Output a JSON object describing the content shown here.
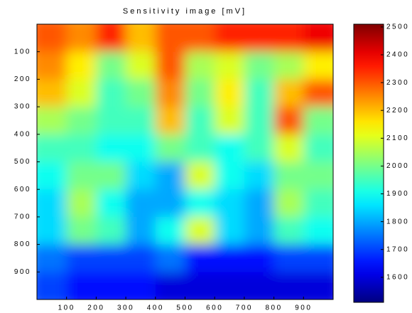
{
  "chart_data": {
    "type": "heatmap",
    "title": "Sensitivity image [mV]",
    "xlim": [
      0,
      1000
    ],
    "xticks": [
      100,
      200,
      300,
      400,
      500,
      600,
      700,
      800,
      900
    ],
    "ylim": [
      0,
      1000
    ],
    "yticks": [
      100,
      200,
      300,
      400,
      500,
      600,
      700,
      800,
      900
    ],
    "y_direction": "reverse",
    "colormap": "jet",
    "clim": [
      1510,
      2510
    ],
    "cticks": [
      1600,
      1700,
      1800,
      1900,
      2000,
      2100,
      2200,
      2300,
      2400,
      2500
    ],
    "values": [
      [
        2300,
        2250,
        2350,
        2200,
        2300,
        2300,
        2350,
        2350,
        2350,
        2400
      ],
      [
        2250,
        2150,
        2000,
        2100,
        2300,
        2050,
        2100,
        2000,
        2050,
        2150
      ],
      [
        2200,
        2100,
        1950,
        2000,
        2250,
        2000,
        2150,
        1950,
        2200,
        2300
      ],
      [
        2050,
        2000,
        1950,
        1950,
        2200,
        1950,
        2100,
        1950,
        2300,
        2000
      ],
      [
        1950,
        1950,
        1900,
        1900,
        2000,
        1950,
        1900,
        1950,
        2100,
        1950
      ],
      [
        1900,
        2000,
        2000,
        1850,
        1800,
        2100,
        1900,
        1850,
        2000,
        2000
      ],
      [
        1850,
        2050,
        1900,
        1800,
        1800,
        1900,
        1850,
        1800,
        2050,
        1950
      ],
      [
        1850,
        2000,
        1950,
        1800,
        1900,
        2100,
        1850,
        1800,
        1950,
        1900
      ],
      [
        1750,
        1700,
        1700,
        1700,
        1750,
        1650,
        1650,
        1650,
        1700,
        1700
      ],
      [
        1700,
        1650,
        1650,
        1650,
        1600,
        1600,
        1600,
        1600,
        1600,
        1600
      ]
    ]
  }
}
